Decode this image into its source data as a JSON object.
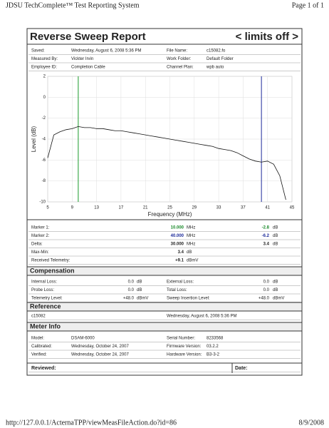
{
  "header": {
    "title": "JDSU TechComplete™ Test Reporting System",
    "page": "Page 1 of 1"
  },
  "report": {
    "title": "Reverse Sweep Report",
    "limits": "< limits off >"
  },
  "info": {
    "rows": [
      [
        "Saved:",
        "Wednesday, August 6, 2008 5:36 PM",
        "File Name:",
        "c15082.fo"
      ],
      [
        "Measured By:",
        "Vickter Irvin",
        "Work Folder:",
        "Default Folder"
      ],
      [
        "Employee ID:",
        "Completion Cable",
        "Channel Plan:",
        "wpb auto"
      ]
    ]
  },
  "chart_data": {
    "type": "line",
    "y_label": "Level (dB)",
    "x_label": "Frequency (MHz)",
    "x": [
      5,
      6,
      7,
      8,
      9,
      10,
      11,
      12,
      13,
      14,
      15,
      16,
      17,
      18,
      19,
      20,
      21,
      22,
      23,
      24,
      25,
      26,
      27,
      28,
      29,
      30,
      31,
      32,
      33,
      34,
      35,
      36,
      37,
      38,
      39,
      40,
      41,
      42,
      43,
      44
    ],
    "series": [
      {
        "color": "#111111",
        "values": [
          -5.8,
          -3.6,
          -3.3,
          -3.1,
          -3.0,
          -2.8,
          -2.9,
          -2.9,
          -3.0,
          -3.0,
          -3.1,
          -3.2,
          -3.2,
          -3.3,
          -3.4,
          -3.5,
          -3.6,
          -3.7,
          -3.8,
          -3.9,
          -4.0,
          -4.1,
          -4.2,
          -4.3,
          -4.4,
          -4.5,
          -4.6,
          -4.7,
          -4.9,
          -5.0,
          -5.1,
          -5.3,
          -5.6,
          -5.9,
          -6.1,
          -6.2,
          -6.1,
          -6.4,
          -7.5,
          -9.8
        ]
      }
    ],
    "markers": [
      {
        "x": 10,
        "color": "#1a9a2a"
      },
      {
        "x": 40,
        "color": "#1c2a9a"
      }
    ],
    "xlim": [
      5,
      45
    ],
    "xticks": [
      5,
      9,
      13,
      17,
      21,
      25,
      29,
      33,
      37,
      41,
      45
    ],
    "ylim": [
      -10,
      2
    ],
    "yticks": [
      2,
      0,
      -2,
      -4,
      -6,
      -8,
      -10
    ],
    "grid": true
  },
  "marker_table": {
    "rows": [
      [
        "Marker 1:",
        "10.000",
        "MHz",
        "-2.8",
        "dB"
      ],
      [
        "Marker 2:",
        "40.000",
        "MHz",
        "-6.2",
        "dB"
      ],
      [
        "Delta:",
        "30.000",
        "MHz",
        "3.4",
        "dB"
      ],
      [
        "Max-Min:",
        "3.4",
        "dB"
      ],
      [
        "Received Telemetry:",
        "+9.1",
        "dBmV"
      ]
    ]
  },
  "compensation": {
    "title": "Compensation",
    "rows": [
      [
        "Internal Loss:",
        "0.0",
        "dB",
        "External Loss:",
        "0.0",
        "dB"
      ],
      [
        "Probe Loss:",
        "0.0",
        "dB",
        "Total Loss:",
        "0.0",
        "dB"
      ],
      [
        "Telemetry Level:",
        "+48.0",
        "dBmV",
        "Sweep Insertion Level:",
        "+48.0",
        "dBmV"
      ]
    ]
  },
  "reference": {
    "title": "Reference",
    "rows": [
      [
        "c15082",
        "Wednesday, August 6, 2008 5:36 PM"
      ]
    ]
  },
  "meter": {
    "title": "Meter Info",
    "rows": [
      [
        "Model:",
        "DSAM-6000",
        "Serial Number:",
        "8233568"
      ],
      [
        "Calibrated:",
        "Wednesday, October 24, 2007",
        "Firmware Version:",
        "03.2.2"
      ],
      [
        "Verified:",
        "Wednesday, October 24, 2007",
        "Hardware Version:",
        "B3-3-2"
      ]
    ]
  },
  "review": {
    "rows": [
      [
        "Reviewed:",
        "Date:"
      ]
    ]
  },
  "footer": {
    "url": "http://127.0.0.1/ActernaTPP/viewMeasFileAction.do?id=86",
    "date": "8/9/2008"
  }
}
